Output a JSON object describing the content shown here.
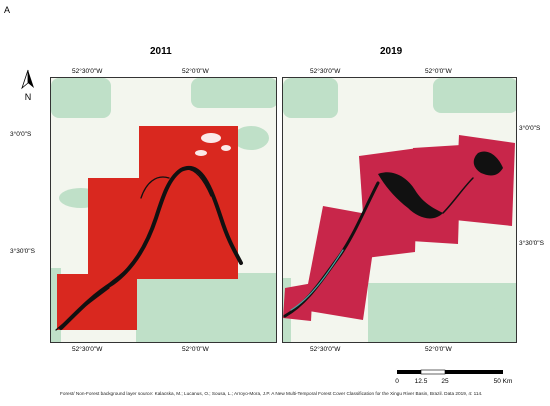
{
  "panel_letter": "A",
  "maps": [
    {
      "title": "2011",
      "top_ticks": [
        "52°30'0\"W",
        "52°0'0\"W"
      ],
      "bottom_ticks": [
        "52°30'0\"W",
        "52°0'0\"W"
      ],
      "left_ticks": [
        "3°0'0\"S",
        "3°30'0\"S"
      ]
    },
    {
      "title": "2019",
      "top_ticks": [
        "52°30'0\"W",
        "52°0'0\"W"
      ],
      "bottom_ticks": [
        "52°30'0\"W",
        "52°0'0\"W"
      ],
      "right_ticks": [
        "3°0'0\"S",
        "3°30'0\"S"
      ]
    }
  ],
  "north_label": "N",
  "scale_bar": {
    "labels": [
      "0",
      "12.5",
      "25",
      "50 Km"
    ]
  },
  "footer_text": "Forest/ Non-Forest background layer source: Kalacska, M.; Lucanus, O.; Sousa, L.; Arroyo-Mora, J.P. A New Multi-Temporal Forest Cover Classification for the Xingu River Basin, Brazil. Data 2019, 4: 114.",
  "colors": {
    "forest": "#f3f6ee",
    "non_forest": "#bfe0c8",
    "imagery_2011": "#d9281f",
    "imagery_2019": "#c8264a",
    "water": "#111111"
  }
}
